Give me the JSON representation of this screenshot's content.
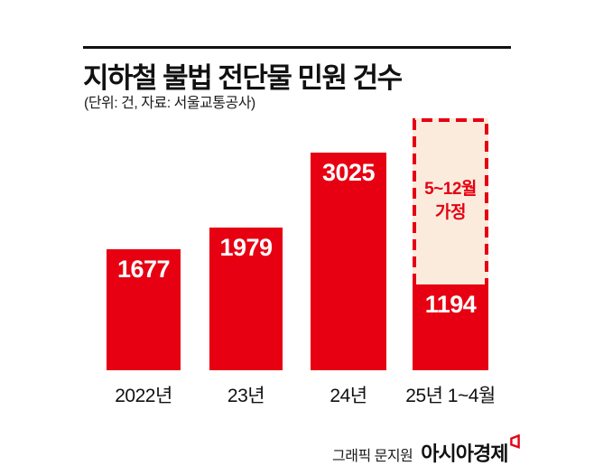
{
  "header": {
    "title": "지하철 불법 전단물 민원 건수",
    "subtitle": "(단위: 건, 자료: 서울교통공사)"
  },
  "chart_data": {
    "type": "bar",
    "title": "지하철 불법 전단물 민원 건수",
    "unit_note": "(단위: 건, 자료: 서울교통공사)",
    "categories": [
      "2022년",
      "23년",
      "24년",
      "25년 1~4월"
    ],
    "values": [
      1677,
      1979,
      3025,
      1194
    ],
    "value_labels": [
      "1677",
      "1979",
      "3025",
      "1194"
    ],
    "projection": {
      "applies_to": "25년 1~4월",
      "label": "5~12월 가정",
      "label_lines": [
        "5~12월",
        "가정"
      ],
      "implied_top_value": 3500,
      "style": "dashed-outline-box"
    },
    "ylim": [
      0,
      3500
    ],
    "grid": false,
    "legend": false,
    "bar_color": "#e60012",
    "value_label_color": "#ffffff",
    "projection_fill": "#fbebdd",
    "projection_text_color": "#e60012",
    "axis_label_color": "#111111"
  },
  "footer": {
    "credit": "그래픽 문지원",
    "brand": "아시아경제",
    "brand_mark": "red-flag-icon"
  }
}
